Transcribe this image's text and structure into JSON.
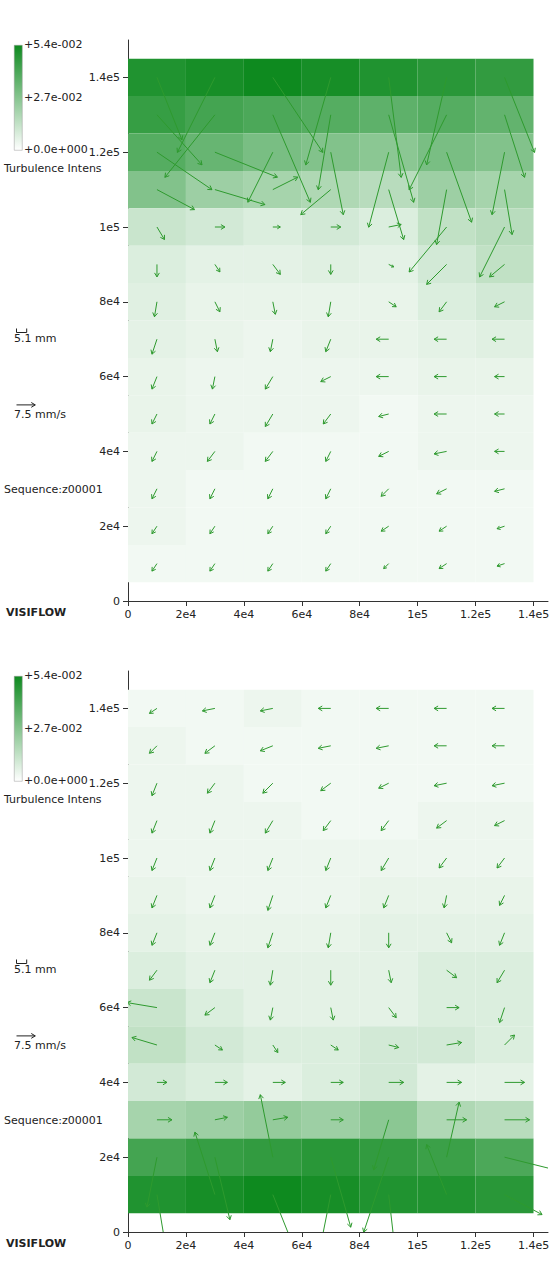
{
  "chart_data": [
    {
      "type": "vector",
      "grid": false,
      "color": "#2e9a2e",
      "xlim": [
        0,
        145000
      ],
      "ylim": [
        0,
        150000
      ],
      "xticks": [
        0,
        {
          "value": 20000,
          "label": "2e4"
        },
        {
          "value": 40000,
          "label": "4e4"
        },
        {
          "value": 60000,
          "label": "6e4"
        },
        {
          "value": 80000,
          "label": "8e4"
        },
        {
          "value": 100000,
          "label": "1e5"
        },
        {
          "value": 120000,
          "label": "1.2e5"
        },
        {
          "value": 140000,
          "label": "1.4e5"
        }
      ],
      "yticks": [
        0,
        {
          "value": 20000,
          "label": "2e4"
        },
        {
          "value": 40000,
          "label": "4e4"
        },
        {
          "value": 60000,
          "label": "6e4"
        },
        {
          "value": 80000,
          "label": "8e4"
        },
        {
          "value": 100000,
          "label": "1e5"
        },
        {
          "value": 120000,
          "label": "1.2e5"
        },
        {
          "value": 140000,
          "label": "1.4e5"
        }
      ],
      "vectors": {
        "x": [
          10000,
          30000,
          50000,
          70000,
          90000,
          110000,
          130000
        ],
        "y": [
          140000,
          130000,
          120000,
          110000,
          100000,
          90000,
          80000,
          70000,
          60000,
          50000,
          40000,
          30000,
          20000,
          10000
        ],
        "u": [
          [
            10,
            -15,
            20,
            -10,
            5,
            -8,
            12
          ],
          [
            18,
            -20,
            15,
            -5,
            10,
            -15,
            8
          ],
          [
            22,
            25,
            -10,
            5,
            -8,
            10,
            -5
          ],
          [
            15,
            20,
            10,
            -12,
            6,
            -4,
            3
          ],
          [
            3,
            4,
            3,
            4,
            5,
            -15,
            -10
          ],
          [
            0,
            2,
            3,
            0,
            2,
            -8,
            -6
          ],
          [
            -1,
            2,
            1,
            -1,
            3,
            -3,
            -4
          ],
          [
            -2,
            1,
            -1,
            -2,
            -5,
            -5,
            -5
          ],
          [
            -2,
            -1,
            -3,
            -4,
            -5,
            -5,
            -4
          ],
          [
            -2,
            -2,
            -3,
            -3,
            -4,
            -5,
            -4
          ],
          [
            -2,
            -3,
            -3,
            -2,
            -4,
            -5,
            -4
          ],
          [
            -2,
            -2,
            -2,
            -2,
            -3,
            -4,
            -4
          ],
          [
            -2,
            -2,
            -2,
            -2,
            -3,
            -3,
            -3
          ],
          [
            -2,
            -2,
            -2,
            -2,
            -2,
            -3,
            -3
          ]
        ],
        "v": [
          [
            -25,
            -30,
            -30,
            -35,
            -40,
            -35,
            -30
          ],
          [
            -20,
            -25,
            -35,
            -30,
            -35,
            -30,
            -25
          ],
          [
            -15,
            -10,
            -20,
            -25,
            -30,
            -28,
            -25
          ],
          [
            -8,
            -6,
            5,
            -10,
            -20,
            -22,
            -18
          ],
          [
            -5,
            0,
            0,
            0,
            1,
            -18,
            -20
          ],
          [
            -5,
            -3,
            -4,
            -4,
            -1,
            -8,
            -5
          ],
          [
            -6,
            -4,
            -5,
            -6,
            -2,
            -4,
            -2
          ],
          [
            -6,
            -5,
            -5,
            -5,
            0,
            0,
            0
          ],
          [
            -5,
            -5,
            -5,
            -2,
            0,
            0,
            0
          ],
          [
            -4,
            -4,
            -5,
            -4,
            -1,
            0,
            0
          ],
          [
            -4,
            -4,
            -4,
            -4,
            -2,
            -1,
            0
          ],
          [
            -4,
            -4,
            -4,
            -4,
            -3,
            -2,
            -1
          ],
          [
            -3,
            -3,
            -3,
            -3,
            -2,
            -2,
            -1
          ],
          [
            -3,
            -3,
            -3,
            -3,
            -2,
            -2,
            -1
          ]
        ]
      },
      "turbulence": {
        "label": "Turbulence Intens",
        "colors": [
          "#ffffff",
          "#0e8a1f"
        ],
        "range": [
          0,
          0.054
        ],
        "ticks": [
          {
            "value": 0,
            "label": "+0.0e+000"
          },
          {
            "value": 0.027,
            "label": "+2.7e-002"
          },
          {
            "value": 0.054,
            "label": "+5.4e-002"
          }
        ],
        "values": [
          [
            0.05,
            0.052,
            0.054,
            0.052,
            0.05,
            0.048,
            0.046
          ],
          [
            0.045,
            0.042,
            0.04,
            0.038,
            0.036,
            0.038,
            0.035
          ],
          [
            0.038,
            0.034,
            0.03,
            0.028,
            0.026,
            0.03,
            0.028
          ],
          [
            0.028,
            0.022,
            0.02,
            0.018,
            0.016,
            0.022,
            0.02
          ],
          [
            0.012,
            0.01,
            0.008,
            0.01,
            0.008,
            0.014,
            0.016
          ],
          [
            0.008,
            0.006,
            0.006,
            0.007,
            0.006,
            0.01,
            0.014
          ],
          [
            0.007,
            0.005,
            0.005,
            0.005,
            0.005,
            0.008,
            0.01
          ],
          [
            0.006,
            0.005,
            0.004,
            0.005,
            0.005,
            0.006,
            0.007
          ],
          [
            0.005,
            0.004,
            0.004,
            0.004,
            0.004,
            0.005,
            0.005
          ],
          [
            0.005,
            0.004,
            0.004,
            0.004,
            0.003,
            0.004,
            0.004
          ],
          [
            0.004,
            0.004,
            0.003,
            0.003,
            0.003,
            0.004,
            0.004
          ],
          [
            0.004,
            0.003,
            0.003,
            0.003,
            0.003,
            0.003,
            0.003
          ],
          [
            0.004,
            0.003,
            0.003,
            0.003,
            0.003,
            0.003,
            0.003
          ],
          [
            0.003,
            0.003,
            0.003,
            0.003,
            0.003,
            0.003,
            0.003
          ]
        ]
      },
      "length_scale": {
        "value": 5.1,
        "label": "5.1 mm"
      },
      "velocity_scale": {
        "value": 7.5,
        "label": "7.5 mm/s"
      },
      "sequence": "Sequence:z00001",
      "brand": "VISIFLOW"
    },
    {
      "type": "vector",
      "grid": false,
      "color": "#2e9a2e",
      "xlim": [
        0,
        145000
      ],
      "ylim": [
        0,
        150000
      ],
      "xticks": [
        0,
        {
          "value": 20000,
          "label": "2e4"
        },
        {
          "value": 40000,
          "label": "4e4"
        },
        {
          "value": 60000,
          "label": "6e4"
        },
        {
          "value": 80000,
          "label": "8e4"
        },
        {
          "value": 100000,
          "label": "1e5"
        },
        {
          "value": 120000,
          "label": "1.2e5"
        },
        {
          "value": 140000,
          "label": "1.4e5"
        }
      ],
      "yticks": [
        0,
        {
          "value": 20000,
          "label": "2e4"
        },
        {
          "value": 40000,
          "label": "4e4"
        },
        {
          "value": 60000,
          "label": "6e4"
        },
        {
          "value": 80000,
          "label": "8e4"
        },
        {
          "value": 100000,
          "label": "1e5"
        },
        {
          "value": 120000,
          "label": "1.2e5"
        },
        {
          "value": 140000,
          "label": "1.4e5"
        }
      ],
      "vectors": {
        "x": [
          10000,
          30000,
          50000,
          70000,
          90000,
          110000,
          130000
        ],
        "y": [
          140000,
          130000,
          120000,
          110000,
          100000,
          90000,
          80000,
          70000,
          60000,
          50000,
          40000,
          30000,
          20000,
          10000
        ],
        "u": [
          [
            -3,
            -5,
            -5,
            -5,
            -5,
            -5,
            -5
          ],
          [
            -3,
            -4,
            -5,
            -5,
            -5,
            -5,
            -5
          ],
          [
            -2,
            -3,
            -4,
            -4,
            -4,
            -5,
            -5
          ],
          [
            -2,
            -2,
            -3,
            -3,
            -3,
            -4,
            -4
          ],
          [
            -2,
            -2,
            -2,
            -2,
            -3,
            -3,
            -3
          ],
          [
            -2,
            -2,
            -2,
            -2,
            -2,
            -1,
            -2
          ],
          [
            -2,
            -2,
            -2,
            -1,
            0,
            2,
            -2
          ],
          [
            -3,
            -2,
            -1,
            0,
            1,
            4,
            -3
          ],
          [
            -12,
            -4,
            -1,
            1,
            3,
            5,
            -2
          ],
          [
            -10,
            3,
            2,
            3,
            4,
            6,
            4
          ],
          [
            4,
            5,
            5,
            5,
            6,
            6,
            8
          ],
          [
            6,
            5,
            6,
            5,
            -6,
            8,
            10
          ],
          [
            -4,
            6,
            -5,
            8,
            -10,
            5,
            20
          ],
          [
            5,
            -8,
            10,
            -6,
            4,
            -8,
            15
          ]
        ],
        "v": [
          [
            -2,
            -1,
            -1,
            0,
            0,
            0,
            0
          ],
          [
            -3,
            -3,
            -2,
            -1,
            -1,
            0,
            0
          ],
          [
            -5,
            -4,
            -4,
            -3,
            -2,
            -1,
            -1
          ],
          [
            -5,
            -5,
            -5,
            -4,
            -4,
            -3,
            -2
          ],
          [
            -5,
            -5,
            -5,
            -5,
            -5,
            -4,
            -4
          ],
          [
            -5,
            -5,
            -6,
            -5,
            -5,
            -5,
            -4
          ],
          [
            -5,
            -5,
            -6,
            -6,
            -6,
            -4,
            -5
          ],
          [
            -4,
            -5,
            -6,
            -6,
            -5,
            -3,
            -5
          ],
          [
            2,
            -3,
            -5,
            -5,
            -4,
            0,
            -6
          ],
          [
            3,
            -2,
            -3,
            -2,
            -1,
            1,
            4
          ],
          [
            0,
            0,
            0,
            0,
            0,
            0,
            0
          ],
          [
            0,
            1,
            1,
            0,
            -20,
            0,
            0
          ],
          [
            -20,
            -25,
            25,
            -28,
            -30,
            22,
            -5
          ],
          [
            -30,
            25,
            -25,
            -30,
            -35,
            20,
            -8
          ]
        ]
      },
      "turbulence": {
        "label": "Turbulence Intens",
        "colors": [
          "#ffffff",
          "#0e8a1f"
        ],
        "range": [
          0,
          0.054
        ],
        "ticks": [
          {
            "value": 0,
            "label": "+0.0e+000"
          },
          {
            "value": 0.027,
            "label": "+2.7e-002"
          },
          {
            "value": 0.054,
            "label": "+5.4e-002"
          }
        ],
        "values": [
          [
            0.003,
            0.003,
            0.004,
            0.003,
            0.003,
            0.003,
            0.003
          ],
          [
            0.004,
            0.003,
            0.003,
            0.003,
            0.003,
            0.003,
            0.003
          ],
          [
            0.004,
            0.004,
            0.003,
            0.003,
            0.003,
            0.003,
            0.003
          ],
          [
            0.004,
            0.004,
            0.004,
            0.003,
            0.003,
            0.004,
            0.004
          ],
          [
            0.004,
            0.004,
            0.004,
            0.004,
            0.004,
            0.004,
            0.004
          ],
          [
            0.005,
            0.004,
            0.004,
            0.004,
            0.005,
            0.005,
            0.005
          ],
          [
            0.006,
            0.005,
            0.005,
            0.005,
            0.006,
            0.006,
            0.006
          ],
          [
            0.008,
            0.006,
            0.006,
            0.006,
            0.006,
            0.008,
            0.008
          ],
          [
            0.012,
            0.008,
            0.006,
            0.006,
            0.006,
            0.008,
            0.008
          ],
          [
            0.014,
            0.01,
            0.008,
            0.008,
            0.01,
            0.01,
            0.008
          ],
          [
            0.01,
            0.008,
            0.006,
            0.008,
            0.01,
            0.006,
            0.006
          ],
          [
            0.02,
            0.022,
            0.024,
            0.022,
            0.026,
            0.018,
            0.016
          ],
          [
            0.042,
            0.045,
            0.046,
            0.048,
            0.046,
            0.044,
            0.04
          ],
          [
            0.05,
            0.052,
            0.054,
            0.052,
            0.05,
            0.05,
            0.048
          ]
        ]
      },
      "length_scale": {
        "value": 5.1,
        "label": "5.1 mm"
      },
      "velocity_scale": {
        "value": 7.5,
        "label": "7.5 mm/s"
      },
      "sequence": "Sequence:z00001",
      "brand": "VISIFLOW"
    }
  ]
}
